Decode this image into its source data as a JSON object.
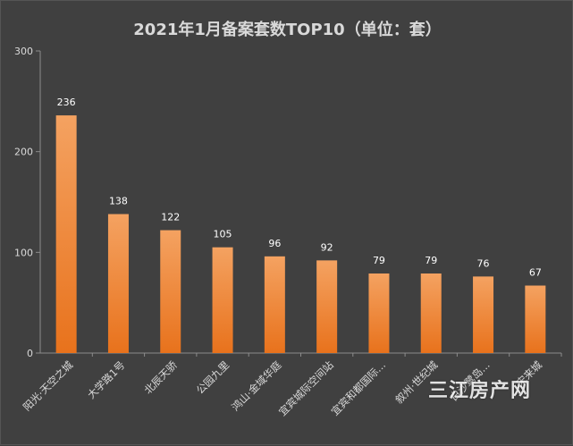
{
  "chart_data": {
    "type": "bar",
    "title": "2021年1月备案套数TOP10（单位：套）",
    "categories": [
      "阳光·天空之城",
      "大学路1号",
      "北辰天骄",
      "公园九里",
      "鸿山·金域华庭",
      "宜宾城际空间站",
      "宜宾和都国际...",
      "叙州·世纪城",
      "白沙鹭岛...",
      "宋来城"
    ],
    "values": [
      236,
      138,
      122,
      105,
      96,
      92,
      79,
      79,
      76,
      67
    ],
    "ylim": [
      0,
      300
    ],
    "yticks": [
      0,
      100,
      200,
      300
    ],
    "xlabel": "",
    "ylabel": "",
    "grid": false,
    "data_labels": true,
    "bar_color_top": "#f4a261",
    "bar_color_bottom": "#e8721c",
    "background": "#404040",
    "text_color": "#d9d9d9"
  },
  "watermark": "三江房产网"
}
